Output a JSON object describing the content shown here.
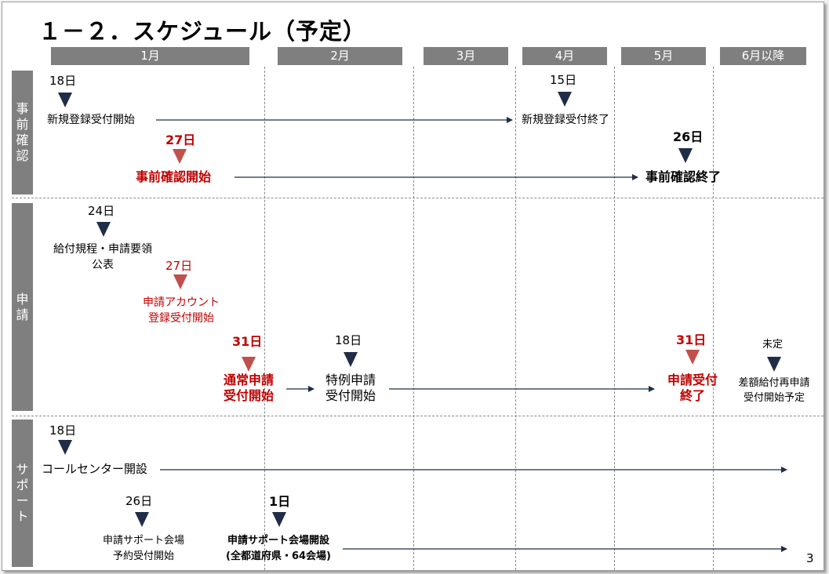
{
  "title": "１－２．スケジュール（予定）",
  "months": [
    "1月",
    "2月",
    "3月",
    "4月",
    "5月",
    "6月以降"
  ],
  "sections": {
    "prior": "事前確認",
    "apply": "申請",
    "support": "サポート"
  },
  "prior": {
    "reg_start_day": "18日",
    "reg_start": "新規登録受付開始",
    "reg_end_day": "15日",
    "reg_end": "新規登録受付終了",
    "check_start_day": "27日",
    "check_start": "事前確認開始",
    "check_end_day": "26日",
    "check_end": "事前確認終了"
  },
  "apply": {
    "rules_day": "24日",
    "rules_line1": "給付規程・申請要領",
    "rules_line2": "公表",
    "account_day": "27日",
    "account_line1": "申請アカウント",
    "account_line2": "登録受付開始",
    "normal_day": "31日",
    "normal_line1": "通常申請",
    "normal_line2": "受付開始",
    "special_day": "18日",
    "special_line1": "特例申請",
    "special_line2": "受付開始",
    "end_day": "31日",
    "end_line1": "申請受付",
    "end_line2": "終了",
    "undecided": "未定",
    "reapply_line1": "差額給付再申請",
    "reapply_line2": "受付開始予定"
  },
  "support": {
    "call_day": "18日",
    "call": "コールセンター開設",
    "reserve_day": "26日",
    "reserve_line1": "申請サポート会場",
    "reserve_line2": "予約受付開始",
    "venue_day": "1日",
    "venue_line1": "申請サポート会場開設",
    "venue_line2": "(全都道府県・64会場)"
  },
  "page_number": "3",
  "colors": {
    "marker_navy": "#1f2d47",
    "marker_red": "#c0504d",
    "accent_red": "#c00000",
    "header_gray": "#7f7f7f"
  },
  "icons": {
    "milestone": "down-triangle-icon",
    "span": "right-arrow-icon"
  }
}
